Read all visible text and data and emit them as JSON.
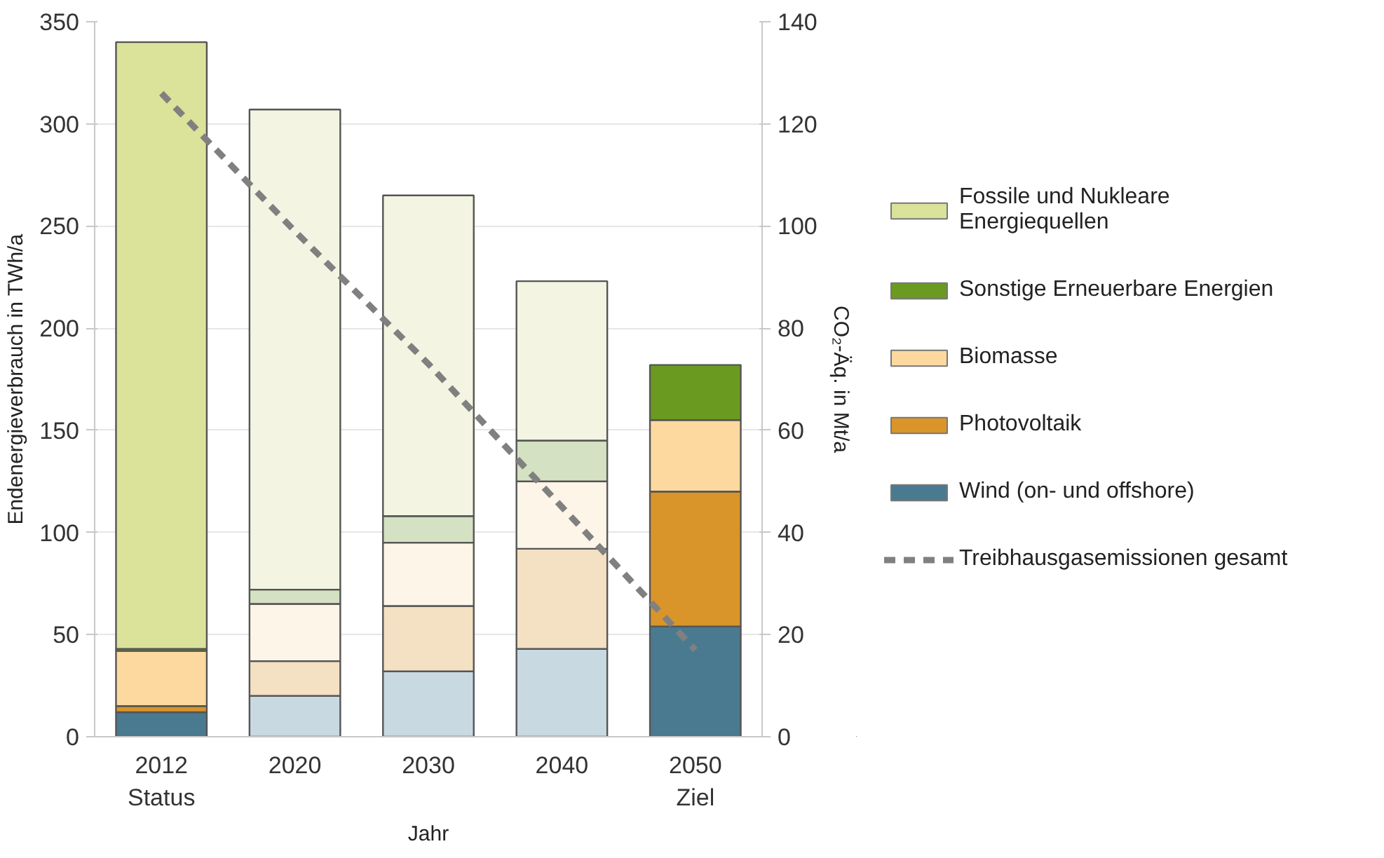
{
  "chart_data": {
    "type": "bar",
    "stacked": true,
    "xlabel": "Jahr",
    "ylabel": "Endenergieverbrauch in TWh/a",
    "y2label": "CO₂-Äq. in Mt/a",
    "categories": [
      "2012\nStatus",
      "2020",
      "2030",
      "2040",
      "2050\nZiel"
    ],
    "series": [
      {
        "name": "Wind (on- und offshore)",
        "color": "#4a7a90",
        "colors": [
          "#4a7a90",
          "#c9d9e1",
          "#c9d9e1",
          "#c9d9e1",
          "#4a7a90"
        ],
        "values": [
          12,
          20,
          32,
          43,
          54
        ]
      },
      {
        "name": "Photovoltaik",
        "color": "#d9952a",
        "colors": [
          "#d9952a",
          "#f4e0c2",
          "#f4e0c2",
          "#f4e0c2",
          "#d9952a"
        ],
        "values": [
          3,
          17,
          32,
          49,
          66
        ]
      },
      {
        "name": "Biomasse",
        "color": "#fdd9a0",
        "colors": [
          "#fdd9a0",
          "#fdf5e7",
          "#fdf5e7",
          "#fdf5e7",
          "#fdd9a0"
        ],
        "values": [
          27,
          28,
          31,
          33,
          35
        ]
      },
      {
        "name": "Sonstige Erneuerbare Energien",
        "color": "#6a9a20",
        "colors": [
          "#6a9a20",
          "#d4e1c2",
          "#d4e1c2",
          "#d4e1c2",
          "#6a9a20"
        ],
        "values": [
          1,
          7,
          13,
          20,
          27
        ]
      },
      {
        "name": "Fossile und Nukleare Energiequellen",
        "color": "#dbe29a",
        "colors": [
          "#dbe29a",
          "#f3f5e2",
          "#f3f5e2",
          "#f3f5e2",
          "#dbe29a"
        ],
        "values": [
          297,
          235,
          157,
          78,
          0
        ]
      },
      {
        "name": "Treibhausgasemissionen gesamt",
        "type": "line",
        "axis": "y2",
        "color": "#808080",
        "line_style": "dashed",
        "values": [
          126,
          99,
          73,
          45,
          17
        ]
      }
    ],
    "ylim": [
      0,
      350
    ],
    "yticks": [
      0,
      50,
      100,
      150,
      200,
      250,
      300,
      350
    ],
    "y2lim": [
      0,
      140
    ],
    "y2ticks": [
      0,
      20,
      40,
      60,
      80,
      100,
      120,
      140
    ],
    "grid": "y",
    "legend": "right"
  }
}
